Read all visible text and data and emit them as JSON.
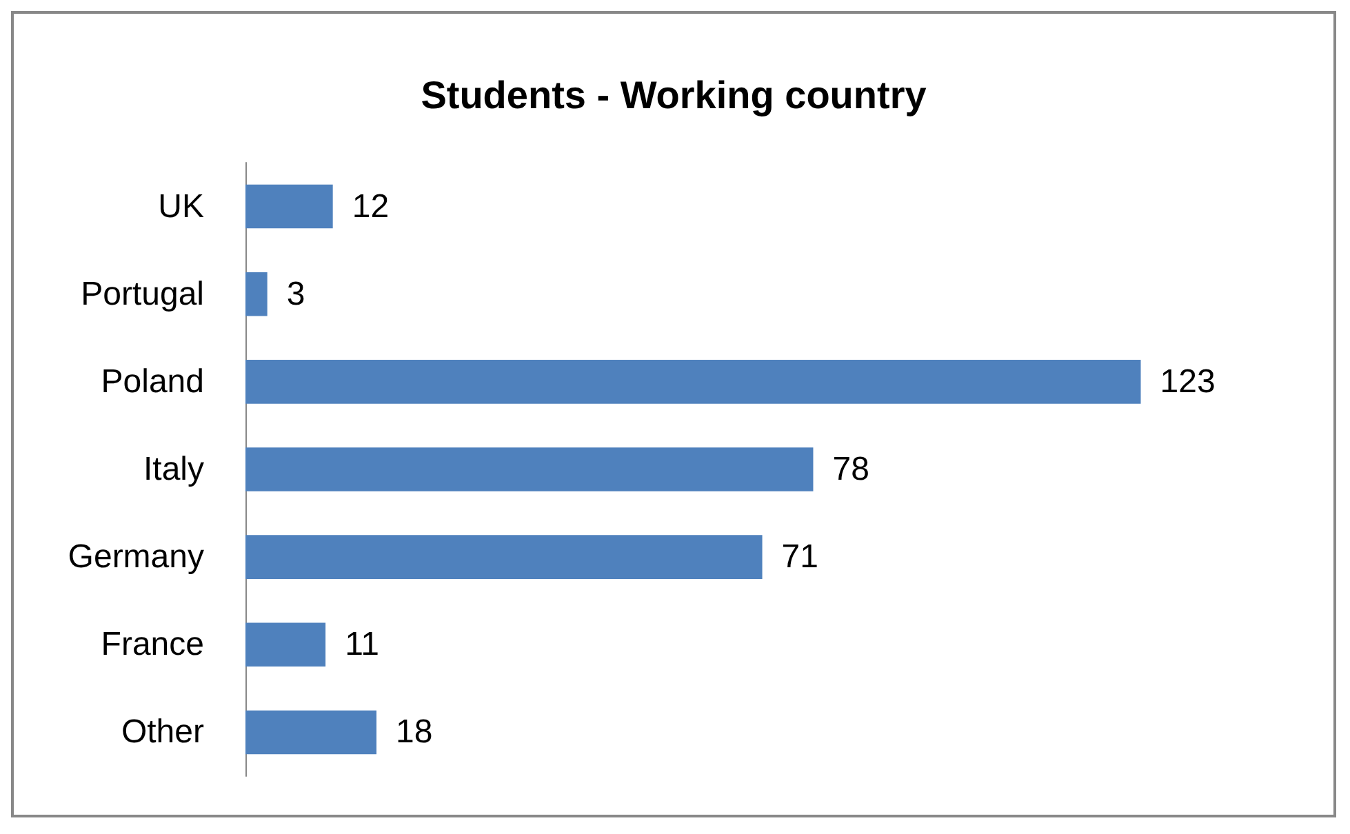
{
  "chart_data": {
    "type": "bar",
    "title": "Students - Working country",
    "orientation": "horizontal",
    "categories": [
      "UK",
      "Portugal",
      "Poland",
      "Italy",
      "Germany",
      "France",
      "Other"
    ],
    "values": [
      12,
      3,
      123,
      78,
      71,
      11,
      18
    ],
    "color": "#4f81bd",
    "data_labels": true
  }
}
